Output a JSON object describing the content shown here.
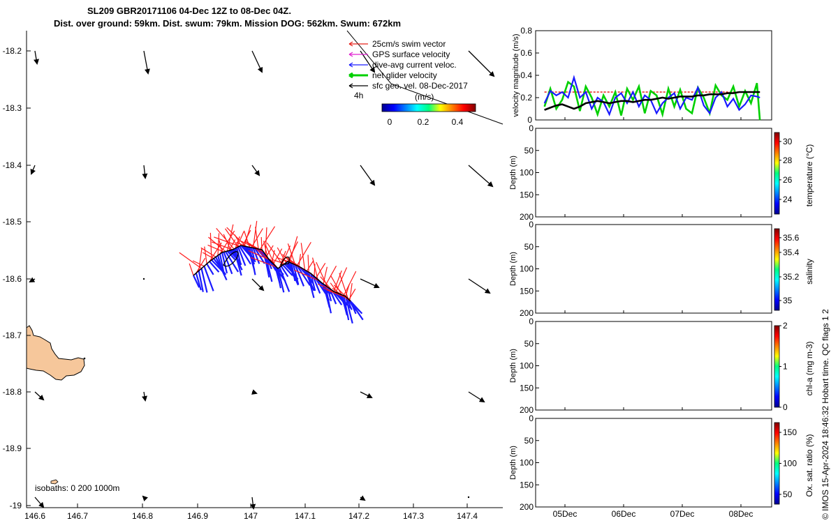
{
  "title": {
    "line1": "SL209 GBR20171106 04-Dec 12Z to 08-Dec 04Z.",
    "line2": "Dist. over ground: 59km. Dist. swum: 79km. Mission DOG: 562km. Swum: 672km"
  },
  "map": {
    "lon_ticks": [
      "146.6",
      "146.7",
      "146.8",
      "146.9",
      "147",
      "147.1",
      "147.2",
      "147.3",
      "147.4"
    ],
    "lat_ticks": [
      "-18.2",
      "-18.3",
      "-18.4",
      "-18.5",
      "-18.6",
      "-18.7",
      "-18.8",
      "-18.9",
      "-19"
    ],
    "legend": [
      {
        "label": "25cm/s swim vector",
        "color": "#e8201a"
      },
      {
        "label": "GPS surface velocity",
        "color": "#e020d0"
      },
      {
        "label": "dive-avg current veloc.",
        "color": "#1a1aff"
      },
      {
        "label": "net glider velocity",
        "color": "#00d000"
      },
      {
        "label": "sfc geo. vel. 08-Dec-2017",
        "color": "#000000"
      }
    ],
    "legend_timestep": "4h",
    "colorbar_label": "(m/s)",
    "colorbar_ticks": [
      "0",
      "0.2",
      "0.4"
    ],
    "isobaths_label": "isobaths: 0   200  1000m",
    "land_color": "#f6c79b",
    "swim_color": "#ff1a1a",
    "current_color": "#1a1aff",
    "track_color": "#000000"
  },
  "velocity_panel": {
    "ylabel": "velocity magnitude (m/s)",
    "yticks": [
      "0",
      "0.2",
      "0.4",
      "0.6",
      "0.8"
    ]
  },
  "profile_panels": [
    {
      "colorbar_label": "temperature (°C)",
      "cbar_ticks": [
        "24",
        "26",
        "28",
        "30"
      ]
    },
    {
      "colorbar_label": "salinity",
      "cbar_ticks": [
        "35",
        "35.2",
        "35.4",
        "35.6"
      ]
    },
    {
      "colorbar_label": "chl-a (mg m-3)",
      "cbar_ticks": [
        "0",
        "1",
        "2"
      ]
    },
    {
      "colorbar_label": "Ox. sat. ratio (%)",
      "cbar_ticks": [
        "50",
        "100",
        "150"
      ]
    }
  ],
  "depth_label": "Depth (m)",
  "depth_ticks": [
    "0",
    "50",
    "100",
    "150",
    "200"
  ],
  "time_ticks": [
    "05Dec",
    "06Dec",
    "07Dec",
    "08Dec"
  ],
  "credit": "© IMOS 15-Apr-2024 18:46:32 Hobart time. QC flags 1  2",
  "chart_data": {
    "type": "line",
    "title": "SL209 GBR20171106 04-Dec 12Z to 08-Dec 04Z.",
    "xlabel": "",
    "ylabel": "velocity magnitude (m/s)",
    "x_ticks": [
      "05Dec",
      "06Dec",
      "07Dec",
      "08Dec"
    ],
    "ylim": [
      0,
      0.8
    ],
    "x": [
      0.0,
      0.1,
      0.2,
      0.3,
      0.4,
      0.5,
      0.6,
      0.7,
      0.8,
      0.9,
      1.0,
      1.1,
      1.2,
      1.3,
      1.4,
      1.5,
      1.6,
      1.7,
      1.8,
      1.9,
      2.0,
      2.1,
      2.2,
      2.3,
      2.4,
      2.5,
      2.6,
      2.7,
      2.8,
      2.9,
      3.0,
      3.1,
      3.2,
      3.3,
      3.4,
      3.5,
      3.6,
      3.65
    ],
    "series": [
      {
        "name": "25cm/s swim vector",
        "values": [
          0.25,
          0.25,
          0.25,
          0.25,
          0.25,
          0.25,
          0.25,
          0.25,
          0.25,
          0.25,
          0.25,
          0.25,
          0.25,
          0.25,
          0.25,
          0.25,
          0.25,
          0.25,
          0.25,
          0.25,
          0.25,
          0.25,
          0.25,
          0.25,
          0.25,
          0.25,
          0.25,
          0.25,
          0.25,
          0.25,
          0.25,
          0.25,
          0.25,
          0.25,
          0.25,
          0.25,
          0.25,
          0.25
        ]
      },
      {
        "name": "net glider velocity",
        "values": [
          0.12,
          0.28,
          0.1,
          0.18,
          0.34,
          0.3,
          0.08,
          0.3,
          0.2,
          0.05,
          0.22,
          0.12,
          0.25,
          0.04,
          0.28,
          0.18,
          0.3,
          0.06,
          0.26,
          0.22,
          0.05,
          0.28,
          0.12,
          0.27,
          0.1,
          0.06,
          0.29,
          0.2,
          0.06,
          0.31,
          0.22,
          0.18,
          0.3,
          0.12,
          0.26,
          0.15,
          0.33,
          0.0
        ]
      },
      {
        "name": "dive-avg current veloc.",
        "values": [
          0.15,
          0.26,
          0.22,
          0.25,
          0.2,
          0.38,
          0.2,
          0.25,
          0.1,
          0.2,
          0.16,
          0.05,
          0.2,
          0.24,
          0.15,
          0.25,
          0.12,
          0.22,
          0.18,
          0.06,
          0.15,
          0.2,
          0.24,
          0.1,
          0.2,
          0.18,
          0.29,
          0.13,
          0.06,
          0.2,
          0.25,
          0.12,
          0.19,
          0.09,
          0.14,
          0.22,
          0.21,
          0.2
        ]
      },
      {
        "name": "sfc geo. vel. 08-Dec-2017",
        "values": [
          0.09,
          0.11,
          0.13,
          0.14,
          0.12,
          0.1,
          0.12,
          0.15,
          0.16,
          0.17,
          0.16,
          0.15,
          0.16,
          0.17,
          0.17,
          0.16,
          0.17,
          0.18,
          0.18,
          0.19,
          0.2,
          0.19,
          0.2,
          0.21,
          0.21,
          0.21,
          0.22,
          0.22,
          0.23,
          0.23,
          0.23,
          0.24,
          0.24,
          0.25,
          0.25,
          0.25,
          0.25,
          0.25
        ]
      }
    ],
    "grid": false,
    "legend": "top-right"
  }
}
